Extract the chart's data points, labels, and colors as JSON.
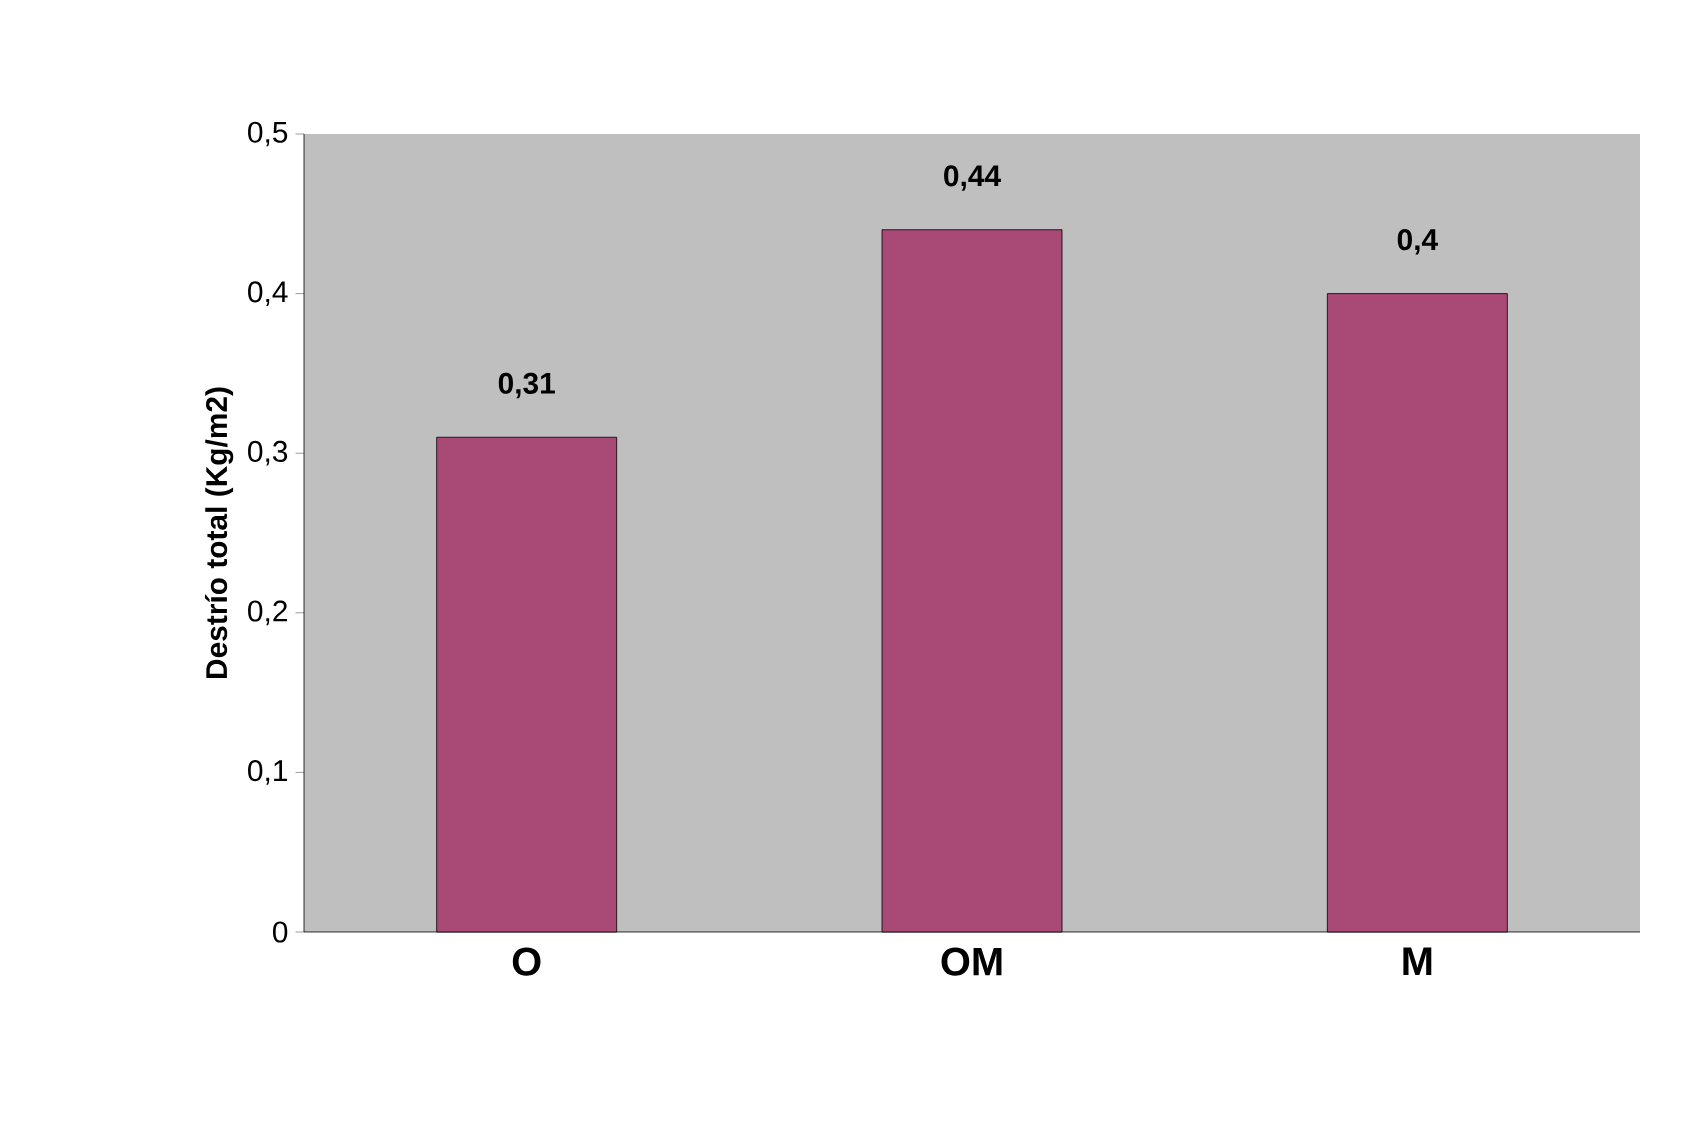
{
  "chart_data": {
    "type": "bar",
    "ylabel": "Destrío total (Kg/m2)",
    "categories": [
      "O",
      "OM",
      "M"
    ],
    "values": [
      0.31,
      0.44,
      0.4
    ],
    "value_labels": [
      "0,31",
      "0,44",
      "0,4"
    ],
    "color": "#a84a75",
    "ylim": [
      0,
      0.5
    ],
    "yticks": [
      {
        "value": 0,
        "label": "0"
      },
      {
        "value": 0.1,
        "label": "0,1"
      },
      {
        "value": 0.2,
        "label": "0,2"
      },
      {
        "value": 0.3,
        "label": "0,3"
      },
      {
        "value": 0.4,
        "label": "0,4"
      },
      {
        "value": 0.5,
        "label": "0,5"
      }
    ],
    "grid": false
  }
}
